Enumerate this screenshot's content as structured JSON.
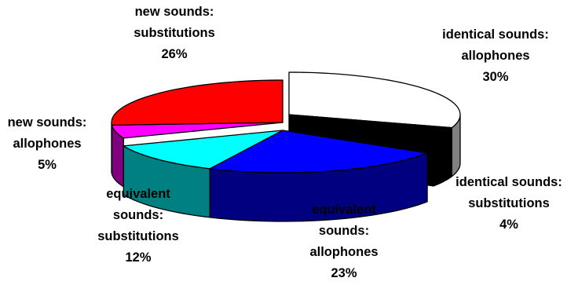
{
  "chart_data": {
    "type": "pie",
    "style": "3d-exploded",
    "categories": [
      "identical sounds: allophones",
      "identical sounds: substitutions",
      "equivalent sounds: allophones",
      "equivalent sounds: substitutions",
      "new sounds: allophones",
      "new sounds: substitutions"
    ],
    "values": [
      30,
      4,
      23,
      12,
      5,
      26
    ],
    "labels": [
      {
        "lines": [
          "identical sounds:",
          "allophones",
          "30%"
        ]
      },
      {
        "lines": [
          "identical sounds:",
          "substitutions",
          "4%"
        ]
      },
      {
        "lines": [
          "equivalent",
          "sounds:",
          "allophones",
          "23%"
        ]
      },
      {
        "lines": [
          "equivalent",
          "sounds:",
          "substitutions",
          "12%"
        ]
      },
      {
        "lines": [
          "new sounds:",
          "allophones",
          "5%"
        ]
      },
      {
        "lines": [
          "new sounds:",
          "substitutions",
          "26%"
        ]
      }
    ],
    "colors": {
      "top": [
        "#ffffff",
        "#000000",
        "#0000ff",
        "#00ffff",
        "#ff00ff",
        "#ff0000"
      ],
      "side": [
        "#808080",
        "#000000",
        "#000080",
        "#008080",
        "#800080",
        "#800000"
      ]
    },
    "legend": "none"
  }
}
